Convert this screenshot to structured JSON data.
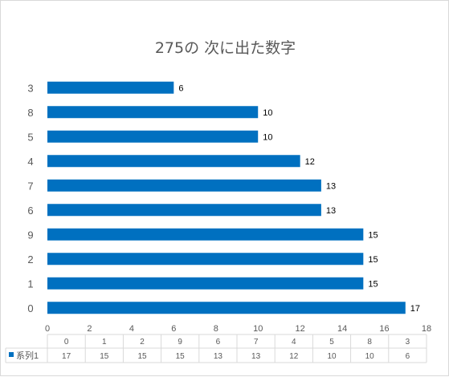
{
  "chart_data": {
    "type": "bar",
    "orientation": "horizontal",
    "title": "275の 次に出た数字",
    "categories": [
      "3",
      "8",
      "5",
      "4",
      "7",
      "6",
      "9",
      "2",
      "1",
      "0"
    ],
    "series": [
      {
        "name": "系列1",
        "values": [
          6,
          10,
          10,
          12,
          13,
          13,
          15,
          15,
          15,
          17
        ],
        "color": "#0070c0"
      }
    ],
    "xlim": [
      0,
      18
    ],
    "x_ticks": [
      0,
      2,
      4,
      6,
      8,
      10,
      12,
      14,
      16,
      18
    ],
    "grid": false,
    "data_labels": true,
    "data_table": {
      "header": [
        "0",
        "1",
        "2",
        "9",
        "6",
        "7",
        "4",
        "5",
        "8",
        "3"
      ],
      "row_label": "系列1",
      "values": [
        "17",
        "15",
        "15",
        "15",
        "13",
        "13",
        "12",
        "10",
        "10",
        "6"
      ]
    }
  }
}
